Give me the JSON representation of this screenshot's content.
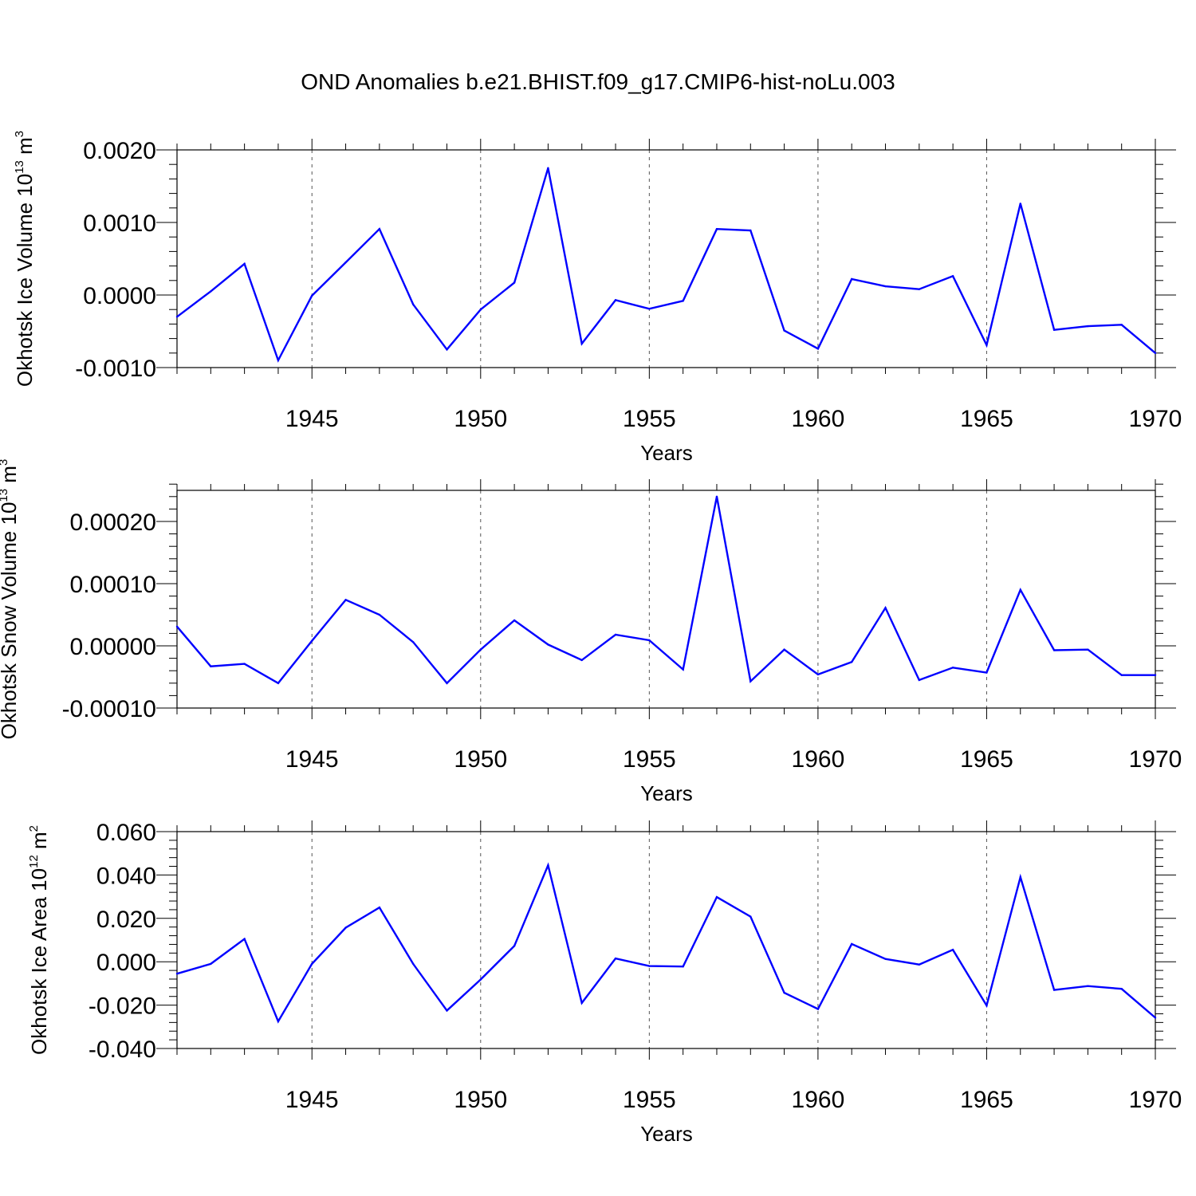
{
  "title": "OND Anomalies b.e21.BHIST.f09_g17.CMIP6-hist-noLu.003",
  "line_color": "#0000ff",
  "chart_data": [
    {
      "type": "line",
      "ylabel": {
        "main": "Okhotsk Ice Volume 10",
        "exp": "13",
        "unit": " m",
        "unit_exp": "3"
      },
      "xlabel": "Years",
      "xlim": [
        1941,
        1970
      ],
      "ylim": [
        -0.001,
        0.002
      ],
      "yticks": [
        -0.001,
        0.0,
        0.001,
        0.002
      ],
      "yticklabels": [
        "-0.0010",
        "0.0000",
        "0.0010",
        "0.0020"
      ],
      "xticks": [
        1945,
        1950,
        1955,
        1960,
        1965,
        1970
      ],
      "xticklabels": [
        "1945",
        "1950",
        "1955",
        "1960",
        "1965",
        "1970"
      ],
      "x": [
        1941,
        1942,
        1943,
        1944,
        1945,
        1946,
        1947,
        1948,
        1949,
        1950,
        1951,
        1952,
        1953,
        1954,
        1955,
        1956,
        1957,
        1958,
        1959,
        1960,
        1961,
        1962,
        1963,
        1964,
        1965,
        1966,
        1967,
        1968,
        1969,
        1970
      ],
      "values": [
        -0.0003,
        5e-05,
        0.00043,
        -0.0009,
        -1e-05,
        0.00045,
        0.00091,
        -0.00013,
        -0.00075,
        -0.0002,
        0.00017,
        0.00175,
        -0.00067,
        -7e-05,
        -0.00019,
        -8e-05,
        0.00091,
        0.00089,
        -0.00049,
        -0.00074,
        0.00022,
        0.00012,
        8e-05,
        0.00026,
        -0.00069,
        0.00126,
        -0.00048,
        -0.00043,
        -0.00041,
        -0.0008
      ]
    },
    {
      "type": "line",
      "ylabel": {
        "main": "Okhotsk Snow Volume 10",
        "exp": "13",
        "unit": " m",
        "unit_exp": "3"
      },
      "xlabel": "Years",
      "xlim": [
        1941,
        1970
      ],
      "ylim": [
        -0.0001,
        0.00025
      ],
      "yticks": [
        -0.0001,
        0.0,
        0.0001,
        0.0002
      ],
      "yticklabels": [
        "-0.00010",
        "0.00000",
        "0.00010",
        "0.00020"
      ],
      "xticks": [
        1945,
        1950,
        1955,
        1960,
        1965,
        1970
      ],
      "xticklabels": [
        "1945",
        "1950",
        "1955",
        "1960",
        "1965",
        "1970"
      ],
      "x": [
        1941,
        1942,
        1943,
        1944,
        1945,
        1946,
        1947,
        1948,
        1949,
        1950,
        1951,
        1952,
        1953,
        1954,
        1955,
        1956,
        1957,
        1958,
        1959,
        1960,
        1961,
        1962,
        1963,
        1964,
        1965,
        1966,
        1967,
        1968,
        1969,
        1970
      ],
      "values": [
        3.1e-05,
        -3.3e-05,
        -2.9e-05,
        -6e-05,
        8e-06,
        7.4e-05,
        5e-05,
        6e-06,
        -6e-05,
        -6e-06,
        4.1e-05,
        2e-06,
        -2.3e-05,
        1.8e-05,
        9e-06,
        -3.8e-05,
        0.00024,
        -5.7e-05,
        -6e-06,
        -4.6e-05,
        -2.6e-05,
        6.1e-05,
        -5.5e-05,
        -3.5e-05,
        -4.3e-05,
        9e-05,
        -7e-06,
        -6e-06,
        -4.7e-05,
        -4.7e-05
      ]
    },
    {
      "type": "line",
      "ylabel": {
        "main": "Okhotsk Ice Area 10",
        "exp": "12",
        "unit": " m",
        "unit_exp": "2"
      },
      "xlabel": "Years",
      "xlim": [
        1941,
        1970
      ],
      "ylim": [
        -0.04,
        0.06
      ],
      "yticks": [
        -0.04,
        -0.02,
        0.0,
        0.02,
        0.04,
        0.06
      ],
      "yticklabels": [
        "-0.040",
        "-0.020",
        "0.000",
        "0.020",
        "0.040",
        "0.060"
      ],
      "xticks": [
        1945,
        1950,
        1955,
        1960,
        1965,
        1970
      ],
      "xticklabels": [
        "1945",
        "1950",
        "1955",
        "1960",
        "1965",
        "1970"
      ],
      "x": [
        1941,
        1942,
        1943,
        1944,
        1945,
        1946,
        1947,
        1948,
        1949,
        1950,
        1951,
        1952,
        1953,
        1954,
        1955,
        1956,
        1957,
        1958,
        1959,
        1960,
        1961,
        1962,
        1963,
        1964,
        1965,
        1966,
        1967,
        1968,
        1969,
        1970
      ],
      "values": [
        -0.0055,
        -0.001,
        0.0105,
        -0.0275,
        -0.001,
        0.0157,
        0.025,
        -0.001,
        -0.0225,
        -0.0082,
        0.0073,
        0.0445,
        -0.019,
        0.0015,
        -0.002,
        -0.0022,
        0.0298,
        0.0208,
        -0.0143,
        -0.0218,
        0.0082,
        0.0013,
        -0.0013,
        0.0055,
        -0.0202,
        0.039,
        -0.013,
        -0.0112,
        -0.0125,
        -0.0258
      ]
    }
  ]
}
